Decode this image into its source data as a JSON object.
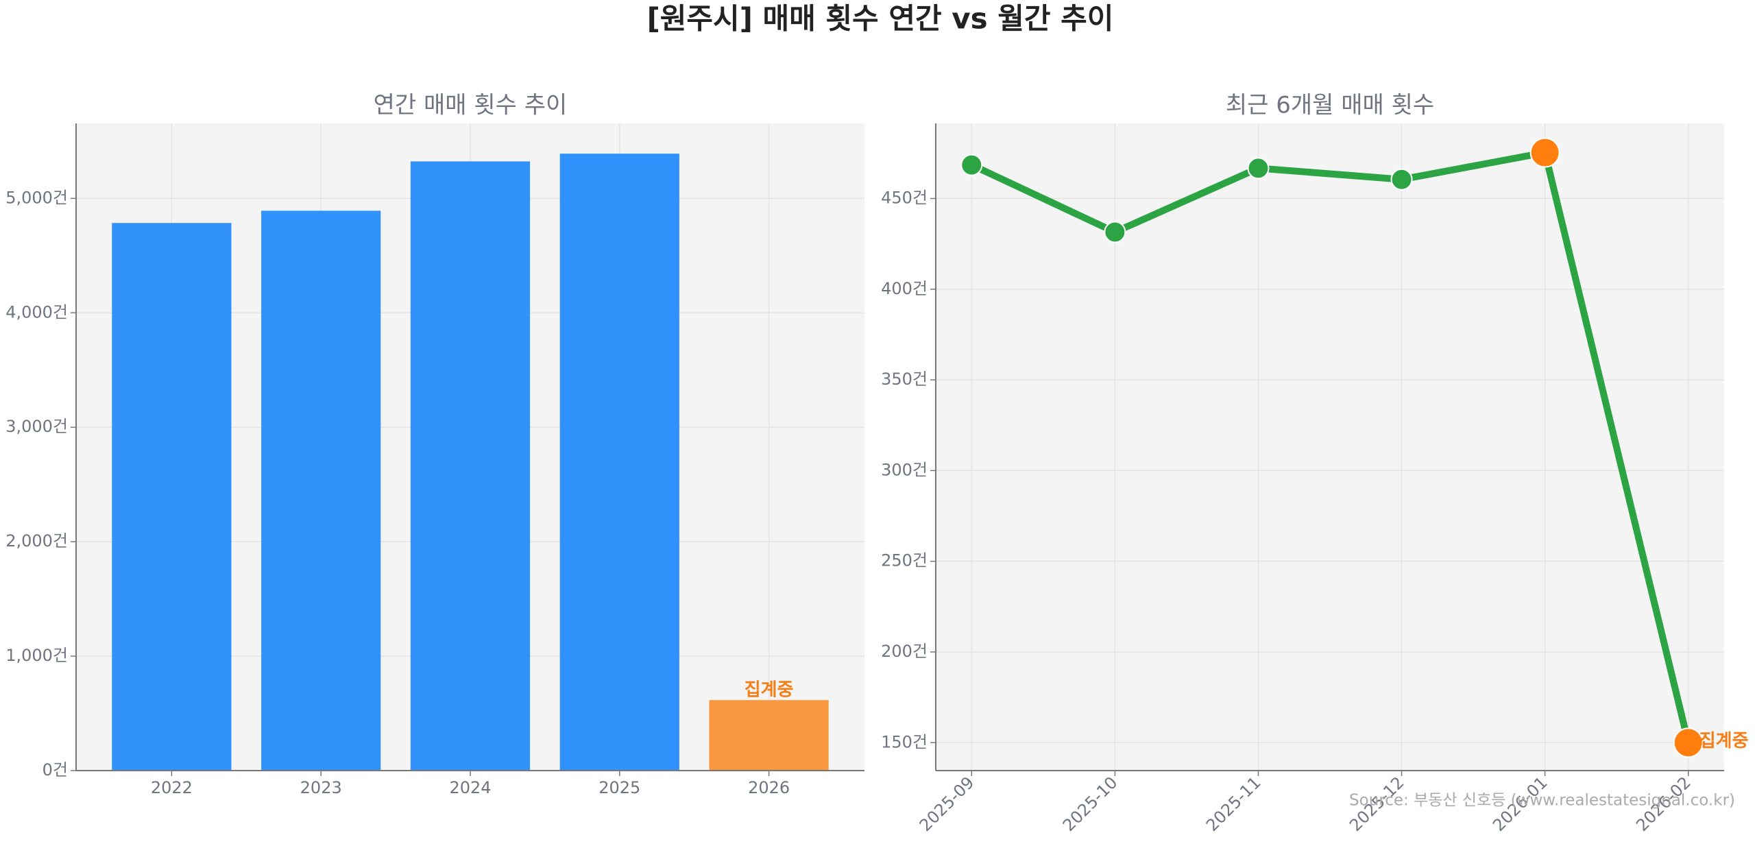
{
  "title": "[원주시] 매매 횟수 연간 vs 월간 추이",
  "source": "Source: 부동산 신호등 (www.realestatesignal.co.kr)",
  "chart_data": [
    {
      "type": "bar",
      "title": "연간 매매 횟수 추이",
      "categories": [
        "2022",
        "2023",
        "2024",
        "2025",
        "2026"
      ],
      "values": [
        4785,
        4892,
        5323,
        5391,
        616
      ],
      "colors": [
        "#3192fb",
        "#3192fb",
        "#3192fb",
        "#3192fb",
        "#f9983f"
      ],
      "annotation": "집계중",
      "annotation_color": "#f57f17",
      "ylim": [
        0,
        5655
      ],
      "yticks": [
        {
          "value": 0,
          "label": "0건"
        },
        {
          "value": 1000,
          "label": "1,000건"
        },
        {
          "value": 2000,
          "label": "2,000건"
        },
        {
          "value": 3000,
          "label": "3,000건"
        },
        {
          "value": 4000,
          "label": "4,000건"
        },
        {
          "value": 5000,
          "label": "5,000건"
        }
      ],
      "grid": true
    },
    {
      "type": "line",
      "title": "최근 6개월 매매 횟수",
      "categories": [
        "2025-09",
        "2025-10",
        "2025-11",
        "2025-12",
        "2026-01",
        "2026-02"
      ],
      "series": [
        {
          "color": "#2ca444",
          "values": [
            468.5,
            431.5,
            466.7,
            460.5,
            475.3,
            150
          ],
          "marker_colors": [
            "#2ca444",
            "#2ca444",
            "#2ca444",
            "#2ca444",
            "#ff7f0e",
            "#ff7f0e"
          ]
        }
      ],
      "annotation": "집계중",
      "annotation_color": "#f57f17",
      "ylim": [
        134.6,
        491.4
      ],
      "yticks": [
        {
          "value": 150,
          "label": "150건"
        },
        {
          "value": 200,
          "label": "200건"
        },
        {
          "value": 250,
          "label": "250건"
        },
        {
          "value": 300,
          "label": "300건"
        },
        {
          "value": 350,
          "label": "350건"
        },
        {
          "value": 400,
          "label": "400건"
        },
        {
          "value": 450,
          "label": "450건"
        }
      ],
      "grid": true
    }
  ]
}
